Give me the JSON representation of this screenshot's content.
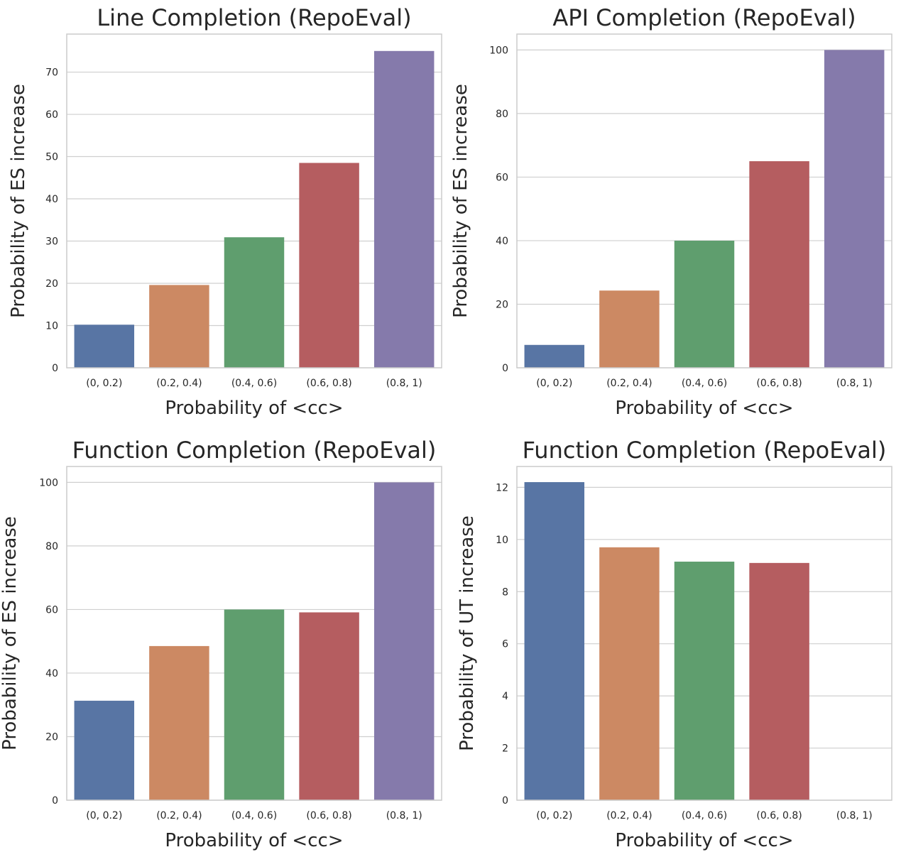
{
  "colors": [
    "#5875a4",
    "#cc8963",
    "#5f9e6e",
    "#b55d60",
    "#857aab"
  ],
  "chart_data": [
    {
      "type": "bar",
      "title": "Line Completion (RepoEval)",
      "xlabel": "Probability of <cc>",
      "ylabel": "Probability of ES increase",
      "categories": [
        "(0, 0.2)",
        "(0.2, 0.4)",
        "(0.4, 0.6)",
        "(0.6, 0.8)",
        "(0.8, 1)"
      ],
      "values": [
        10.2,
        19.6,
        30.9,
        48.5,
        75.0
      ],
      "ylim": [
        0,
        79
      ],
      "yticks": [
        0,
        10,
        20,
        30,
        40,
        50,
        60,
        70
      ],
      "ytick_labels": [
        "0",
        "10",
        "20",
        "30",
        "40",
        "50",
        "60",
        "70"
      ],
      "grid": true
    },
    {
      "type": "bar",
      "title": "API Completion (RepoEval)",
      "xlabel": "Probability of <cc>",
      "ylabel": "Probability of ES increase",
      "categories": [
        "(0, 0.2)",
        "(0.2, 0.4)",
        "(0.4, 0.6)",
        "(0.6, 0.8)",
        "(0.8, 1)"
      ],
      "values": [
        7.2,
        24.3,
        40.0,
        65.0,
        100.0
      ],
      "ylim": [
        0,
        105
      ],
      "yticks": [
        0,
        20,
        40,
        60,
        80,
        100
      ],
      "ytick_labels": [
        "0",
        "20",
        "40",
        "60",
        "80",
        "100"
      ],
      "grid": true
    },
    {
      "type": "bar",
      "title": "Function Completion (RepoEval)",
      "xlabel": "Probability of <cc>",
      "ylabel": "Probability of ES increase",
      "categories": [
        "(0, 0.2)",
        "(0.2, 0.4)",
        "(0.4, 0.6)",
        "(0.6, 0.8)",
        "(0.8, 1)"
      ],
      "values": [
        31.3,
        48.5,
        60.0,
        59.1,
        100.0
      ],
      "ylim": [
        0,
        105
      ],
      "yticks": [
        0,
        20,
        40,
        60,
        80,
        100
      ],
      "ytick_labels": [
        "0",
        "20",
        "40",
        "60",
        "80",
        "100"
      ],
      "grid": true
    },
    {
      "type": "bar",
      "title": "Function Completion (RepoEval)",
      "xlabel": "Probability of <cc>",
      "ylabel": "Probability of UT increase",
      "categories": [
        "(0, 0.2)",
        "(0.2, 0.4)",
        "(0.4, 0.6)",
        "(0.6, 0.8)",
        "(0.8, 1)"
      ],
      "values": [
        12.2,
        9.7,
        9.15,
        9.1,
        0
      ],
      "ylim": [
        0,
        12.8
      ],
      "yticks": [
        0,
        2,
        4,
        6,
        8,
        10,
        12
      ],
      "ytick_labels": [
        "0",
        "2",
        "4",
        "6",
        "8",
        "10",
        "12"
      ],
      "grid": true
    }
  ]
}
